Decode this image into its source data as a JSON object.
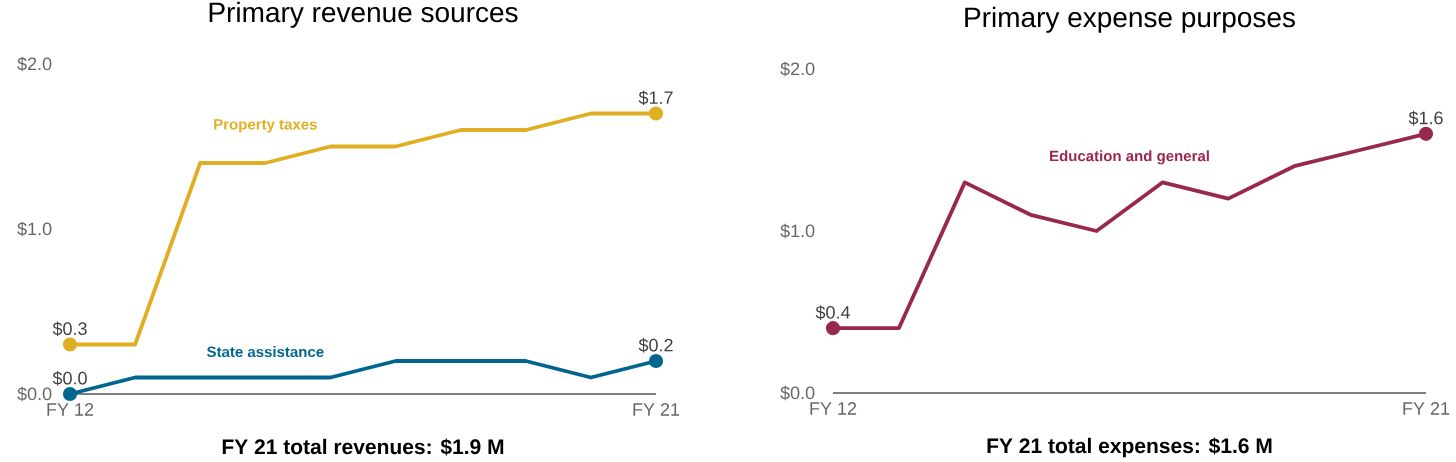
{
  "chart_data": [
    {
      "type": "line",
      "title": "Primary revenue sources",
      "xlabel": "FY 21 total revenues: $1.9 M",
      "categories": [
        "FY 12",
        null,
        null,
        null,
        null,
        null,
        null,
        null,
        null,
        "FY 21"
      ],
      "ylim": [
        0,
        2.0
      ],
      "yticks": [
        {
          "value": 0,
          "label": "$0.0"
        },
        {
          "value": 1.0,
          "label": "$1.0"
        },
        {
          "value": 2.0,
          "label": "$2.0"
        }
      ],
      "line_style": "solid",
      "series": [
        {
          "name": "Property taxes",
          "color": "#e0ae22",
          "values": [
            0.3,
            0.3,
            1.4,
            1.4,
            1.5,
            1.5,
            1.6,
            1.6,
            1.7,
            1.7
          ],
          "value_labels": [
            "$0.3",
            null,
            null,
            null,
            null,
            null,
            null,
            null,
            null,
            "$1.7"
          ]
        },
        {
          "name": "State assistance",
          "color": "#00668f",
          "values": [
            0.0,
            0.1,
            0.1,
            0.1,
            0.1,
            0.2,
            0.2,
            0.2,
            0.1,
            0.2
          ],
          "value_labels": [
            "$0.0",
            null,
            null,
            null,
            null,
            null,
            null,
            null,
            null,
            "$0.2"
          ]
        }
      ]
    },
    {
      "type": "line",
      "title": "Primary expense purposes",
      "xlabel": "FY 21 total expenses: $1.6 M",
      "categories": [
        "FY 12",
        null,
        null,
        null,
        null,
        null,
        null,
        null,
        null,
        "FY 21"
      ],
      "ylim": [
        0,
        2.0
      ],
      "yticks": [
        {
          "value": 0,
          "label": "$0.0"
        },
        {
          "value": 1.0,
          "label": "$1.0"
        },
        {
          "value": 2.0,
          "label": "$2.0"
        }
      ],
      "line_style": "solid",
      "series": [
        {
          "name": "Education and general",
          "color": "#98284f",
          "values": [
            0.4,
            0.4,
            1.3,
            1.1,
            1.0,
            1.3,
            1.2,
            1.4,
            1.5,
            1.6
          ],
          "value_labels": [
            "$0.4",
            null,
            null,
            null,
            null,
            null,
            null,
            null,
            null,
            "$1.6"
          ]
        }
      ]
    }
  ]
}
